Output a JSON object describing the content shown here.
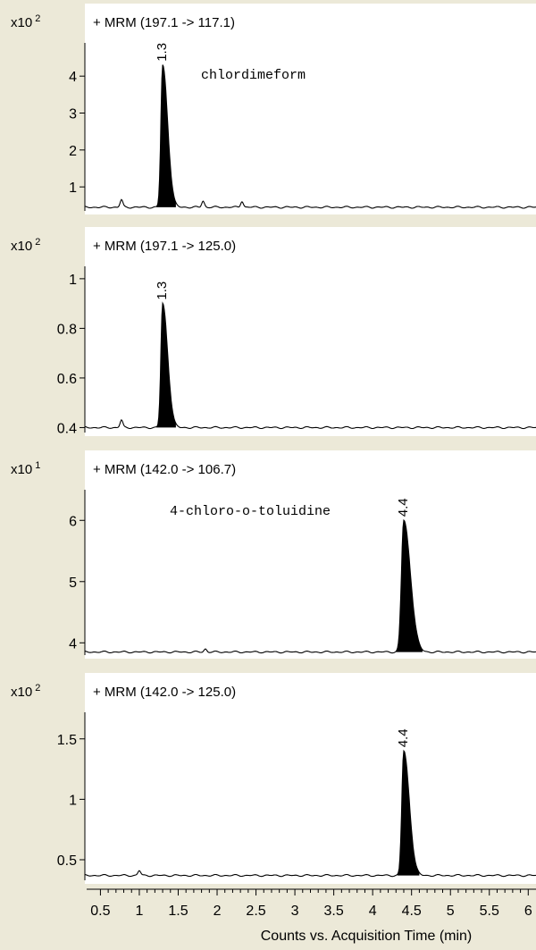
{
  "chart_data": [
    {
      "type": "line",
      "title": "+ MRM (197.1 -> 117.1)",
      "scale_base": "x10",
      "scale_exp": "2",
      "y_ticks": [
        "1",
        "2",
        "3",
        "4"
      ],
      "y_tick_values": [
        1,
        2,
        3,
        4
      ],
      "ylim": [
        0.35,
        4.9
      ],
      "baseline": 0.45,
      "noise": [
        [
          0.77,
          0.65
        ],
        [
          1.82,
          0.62
        ],
        [
          2.32,
          0.62
        ]
      ],
      "peak": {
        "x": 1.3,
        "y": 4.3,
        "width": 0.09,
        "label": "1.3"
      },
      "annotation": "chlordimeform"
    },
    {
      "type": "line",
      "title": "+ MRM (197.1 -> 125.0)",
      "scale_base": "x10",
      "scale_exp": "2",
      "y_ticks": [
        "0.4",
        "0.6",
        "0.8",
        "1"
      ],
      "y_tick_values": [
        0.4,
        0.6,
        0.8,
        1.0
      ],
      "ylim": [
        0.38,
        1.05
      ],
      "baseline": 0.4,
      "noise": [
        [
          0.77,
          0.43
        ]
      ],
      "peak": {
        "x": 1.3,
        "y": 0.9,
        "width": 0.09,
        "label": "1.3"
      },
      "annotation": ""
    },
    {
      "type": "line",
      "title": "+ MRM (142.0 -> 106.7)",
      "scale_base": "x10",
      "scale_exp": "1",
      "y_ticks": [
        "4",
        "5",
        "6"
      ],
      "y_tick_values": [
        4,
        5,
        6
      ],
      "ylim": [
        3.8,
        6.5
      ],
      "baseline": 3.85,
      "noise": [
        [
          1.85,
          3.9
        ]
      ],
      "peak": {
        "x": 4.4,
        "y": 6.0,
        "width": 0.12,
        "label": "4.4"
      },
      "annotation": "4-chloro-o-toluidine"
    },
    {
      "type": "line",
      "title": "+ MRM (142.0 -> 125.0)",
      "scale_base": "x10",
      "scale_exp": "2",
      "y_ticks": [
        "0.5",
        "1",
        "1.5"
      ],
      "y_tick_values": [
        0.5,
        1.0,
        1.5
      ],
      "ylim": [
        0.33,
        1.72
      ],
      "baseline": 0.37,
      "noise": [
        [
          1.0,
          0.41
        ]
      ],
      "peak": {
        "x": 4.4,
        "y": 1.4,
        "width": 0.1,
        "label": "4.4"
      },
      "annotation": ""
    }
  ],
  "x_axis": {
    "ticks": [
      "0.5",
      "1",
      "1.5",
      "2",
      "2.5",
      "3",
      "3.5",
      "4",
      "4.5",
      "5",
      "5.5",
      "6"
    ],
    "tick_values": [
      0.5,
      1,
      1.5,
      2,
      2.5,
      3,
      3.5,
      4,
      4.5,
      5,
      5.5,
      6
    ],
    "xlim": [
      0.3,
      6.1
    ],
    "label": "Counts vs. Acquisition Time (min)"
  }
}
